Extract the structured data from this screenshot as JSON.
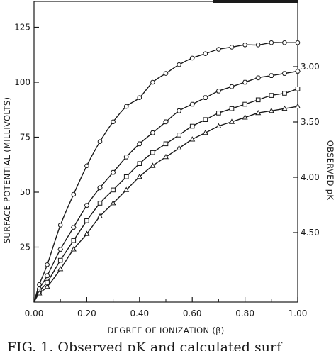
{
  "chart_data": {
    "type": "line",
    "xlabel": "DEGREE OF IONIZATION (β)",
    "ylabel": "SURFACE POTENTIAL (MILLIVOLTS)",
    "y2label": "OBSERVED pK",
    "xlim": [
      0,
      1.0
    ],
    "ylim": [
      0,
      135
    ],
    "x_ticks": [
      "0.00",
      "0.20",
      "0.40",
      "0.60",
      "0.80",
      "1.00"
    ],
    "y_ticks": [
      "25",
      "50",
      "75",
      "100",
      "125"
    ],
    "y2_ticks": [
      "3.00",
      "3.50",
      "4.00",
      "4.50"
    ],
    "grid": false,
    "series": [
      {
        "marker": "circle",
        "points": [
          [
            0.02,
            8
          ],
          [
            0.05,
            17
          ],
          [
            0.1,
            35
          ],
          [
            0.15,
            49
          ],
          [
            0.2,
            62
          ],
          [
            0.25,
            73
          ],
          [
            0.3,
            82
          ],
          [
            0.35,
            89
          ],
          [
            0.4,
            93
          ],
          [
            0.45,
            100
          ],
          [
            0.5,
            104
          ],
          [
            0.55,
            108
          ],
          [
            0.6,
            111
          ],
          [
            0.65,
            113
          ],
          [
            0.7,
            115
          ],
          [
            0.75,
            116
          ],
          [
            0.8,
            117
          ],
          [
            0.85,
            117
          ],
          [
            0.9,
            118
          ],
          [
            0.95,
            118
          ],
          [
            1.0,
            118
          ]
        ]
      },
      {
        "marker": "hexagon",
        "points": [
          [
            0.02,
            6
          ],
          [
            0.05,
            12
          ],
          [
            0.1,
            24
          ],
          [
            0.15,
            34
          ],
          [
            0.2,
            44
          ],
          [
            0.25,
            52
          ],
          [
            0.3,
            59
          ],
          [
            0.35,
            66
          ],
          [
            0.4,
            72
          ],
          [
            0.45,
            77
          ],
          [
            0.5,
            82
          ],
          [
            0.55,
            87
          ],
          [
            0.6,
            90
          ],
          [
            0.65,
            93
          ],
          [
            0.7,
            96
          ],
          [
            0.75,
            98
          ],
          [
            0.8,
            100
          ],
          [
            0.85,
            102
          ],
          [
            0.9,
            103
          ],
          [
            0.95,
            104
          ],
          [
            1.0,
            105
          ]
        ]
      },
      {
        "marker": "square",
        "points": [
          [
            0.02,
            5
          ],
          [
            0.05,
            9
          ],
          [
            0.1,
            19
          ],
          [
            0.15,
            28
          ],
          [
            0.2,
            37
          ],
          [
            0.25,
            45
          ],
          [
            0.3,
            51
          ],
          [
            0.35,
            57
          ],
          [
            0.4,
            63
          ],
          [
            0.45,
            68
          ],
          [
            0.5,
            72
          ],
          [
            0.55,
            76
          ],
          [
            0.6,
            80
          ],
          [
            0.65,
            83
          ],
          [
            0.7,
            86
          ],
          [
            0.75,
            88
          ],
          [
            0.8,
            90
          ],
          [
            0.85,
            92
          ],
          [
            0.9,
            94
          ],
          [
            0.95,
            95
          ],
          [
            1.0,
            97
          ]
        ]
      },
      {
        "marker": "triangle",
        "points": [
          [
            0.02,
            4
          ],
          [
            0.05,
            7
          ],
          [
            0.1,
            15
          ],
          [
            0.15,
            24
          ],
          [
            0.2,
            31
          ],
          [
            0.25,
            39
          ],
          [
            0.3,
            45
          ],
          [
            0.35,
            51
          ],
          [
            0.4,
            57
          ],
          [
            0.45,
            62
          ],
          [
            0.5,
            66
          ],
          [
            0.55,
            70
          ],
          [
            0.6,
            74
          ],
          [
            0.65,
            77
          ],
          [
            0.7,
            80
          ],
          [
            0.75,
            82
          ],
          [
            0.8,
            84
          ],
          [
            0.85,
            86
          ],
          [
            0.9,
            87
          ],
          [
            0.95,
            88
          ],
          [
            1.0,
            89
          ]
        ]
      }
    ]
  },
  "caption": "FIG. 1.  Observed pK and calculated surf"
}
